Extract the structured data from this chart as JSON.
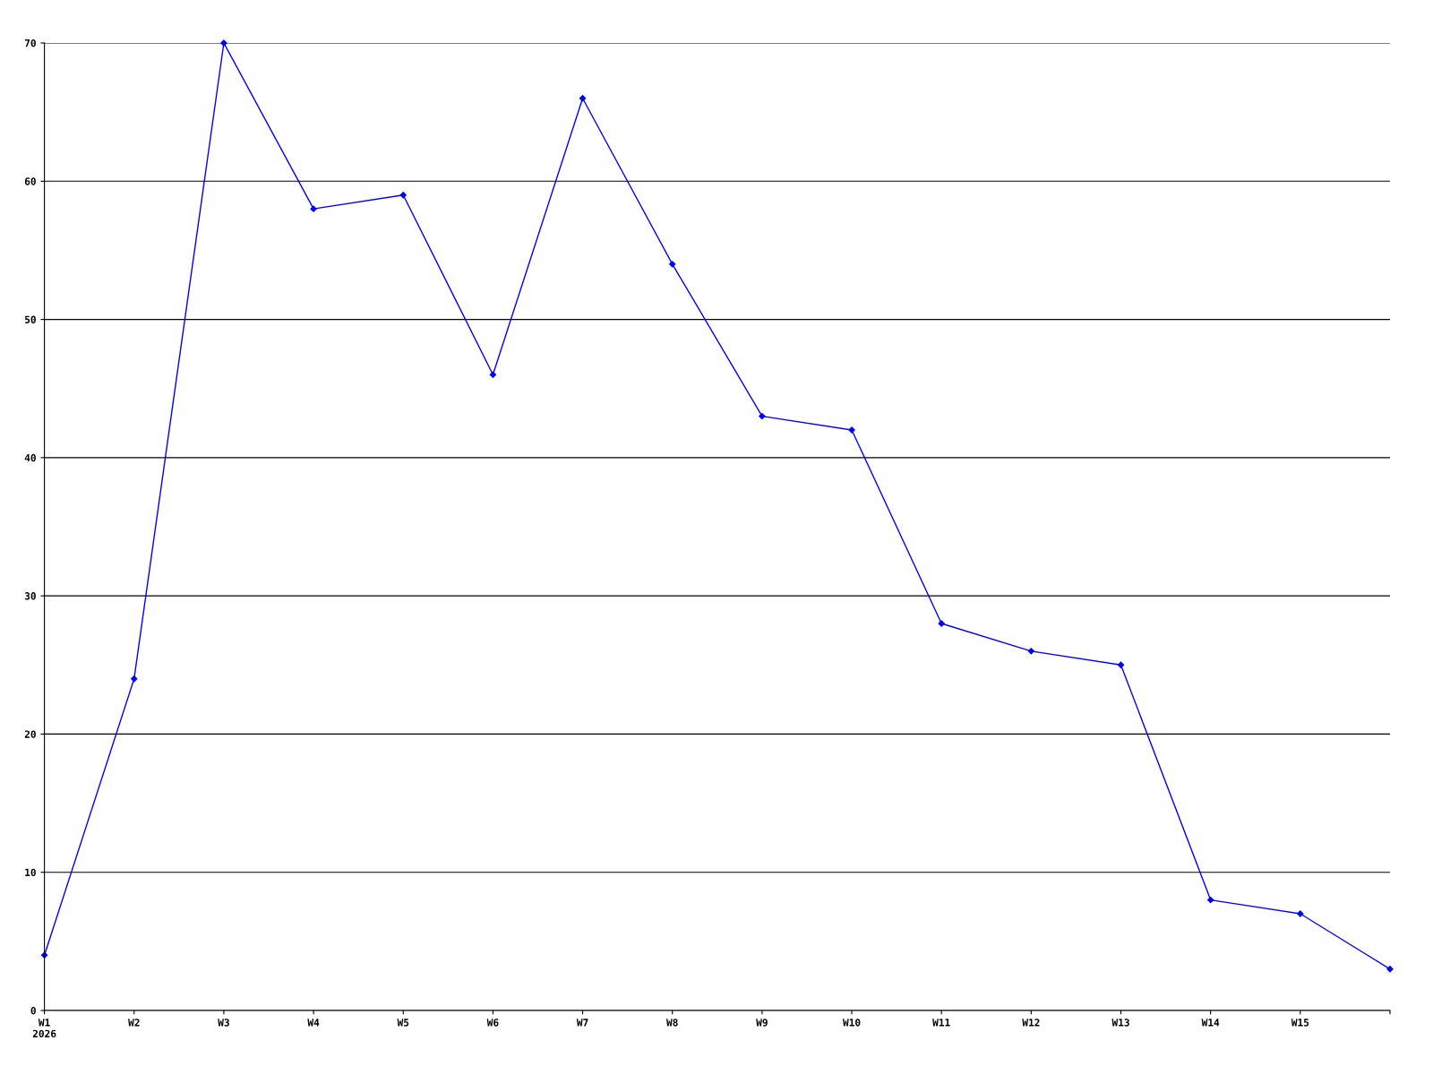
{
  "chart_data": {
    "type": "line",
    "categories": [
      "W1\n2026",
      "W2",
      "W3",
      "W4",
      "W5",
      "W6",
      "W7",
      "W8",
      "W9",
      "W10",
      "W11",
      "W12",
      "W13",
      "W14",
      "W15",
      null
    ],
    "series": [
      {
        "color": "#0000ff",
        "values": [
          4,
          24,
          70,
          58,
          59,
          46,
          66,
          54,
          43,
          42,
          28,
          26,
          25,
          8,
          7,
          3
        ]
      }
    ],
    "ylim": [
      0,
      70
    ],
    "yticks": [
      0,
      10,
      20,
      30,
      40,
      50,
      60,
      70
    ],
    "grid": "y",
    "marker": "diamond",
    "line_style": "solid",
    "legend": false
  }
}
